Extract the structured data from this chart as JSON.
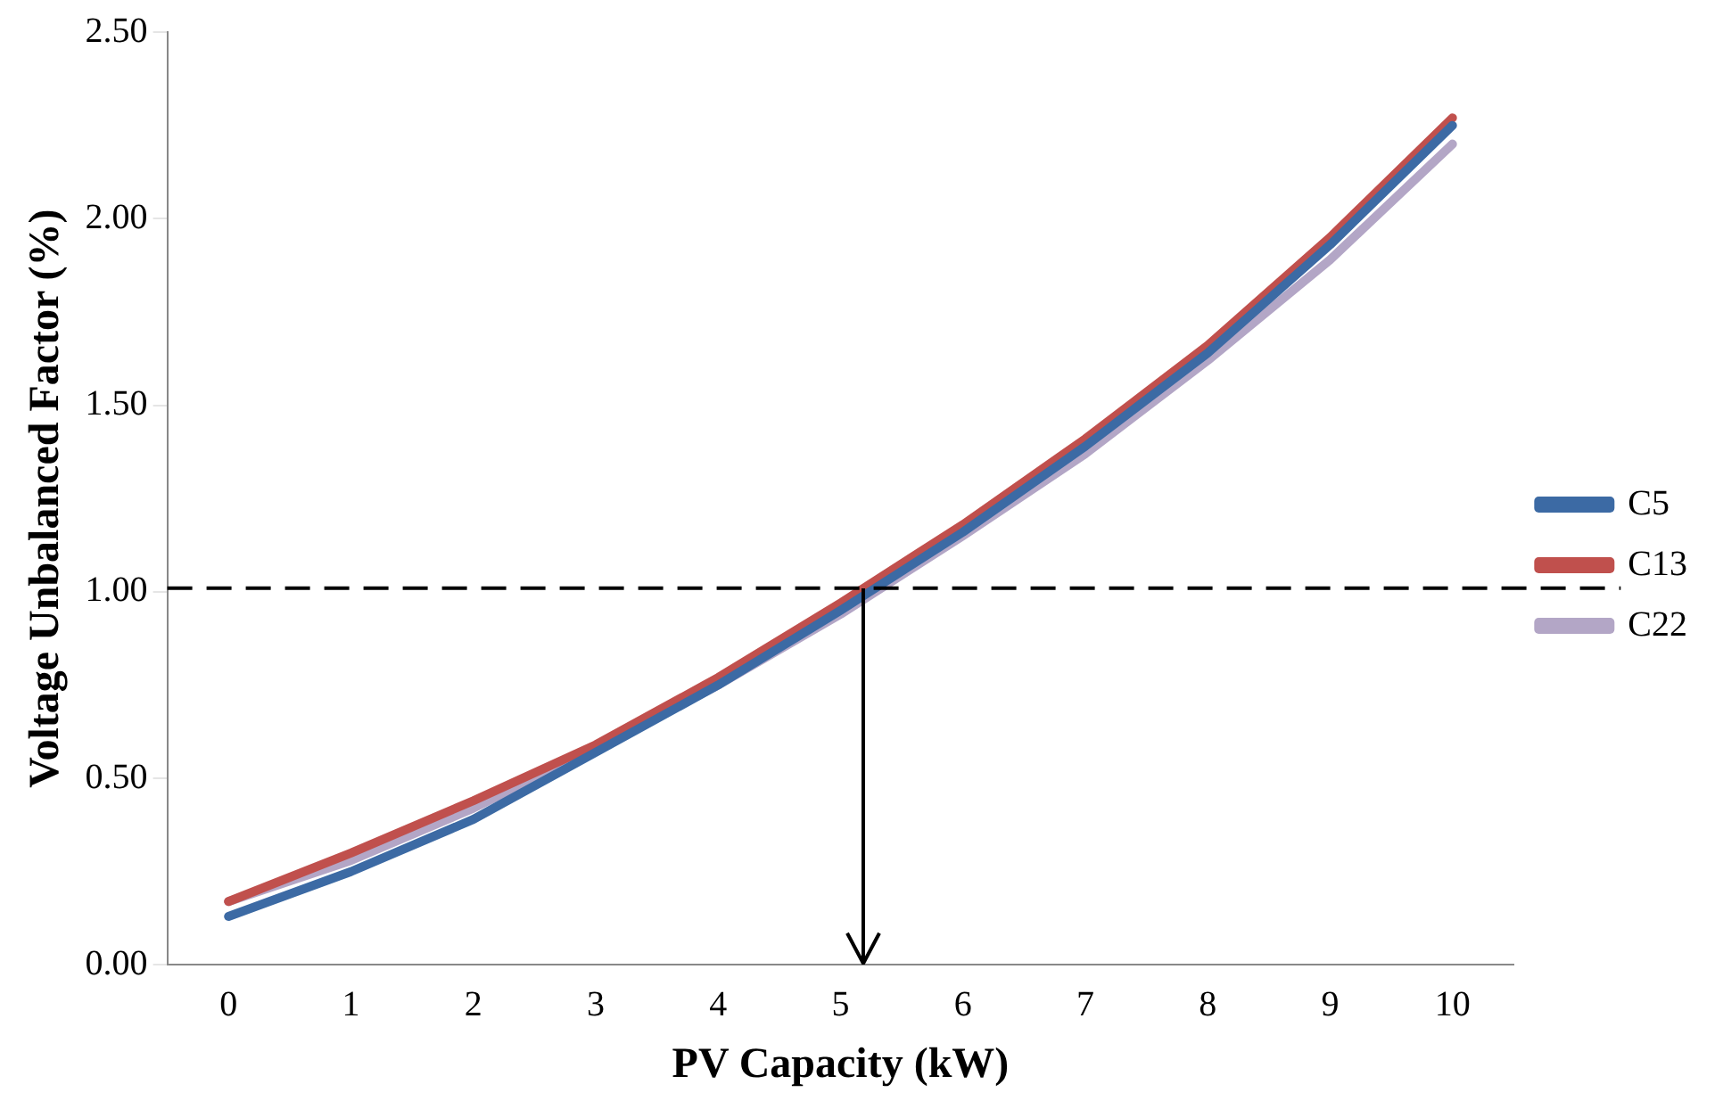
{
  "chart_data": {
    "type": "line",
    "xlabel": "PV Capacity (kW)",
    "ylabel": "Voltage Unbalanced Factor (%)",
    "categories": [
      "0",
      "1",
      "2",
      "3",
      "4",
      "5",
      "6",
      "7",
      "8",
      "9",
      "10"
    ],
    "series": [
      {
        "name": "C5",
        "color": "#3c6aa4",
        "values": [
          0.13,
          0.25,
          0.39,
          0.57,
          0.75,
          0.95,
          1.16,
          1.39,
          1.64,
          1.93,
          2.25
        ]
      },
      {
        "name": "C13",
        "color": "#c0504d",
        "values": [
          0.17,
          0.3,
          0.44,
          0.59,
          0.77,
          0.97,
          1.18,
          1.41,
          1.66,
          1.95,
          2.27
        ]
      },
      {
        "name": "C22",
        "color": "#b3a6c6",
        "values": [
          0.17,
          0.28,
          0.42,
          0.58,
          0.75,
          0.94,
          1.15,
          1.37,
          1.62,
          1.89,
          2.2
        ]
      }
    ],
    "ylim": [
      0,
      2.5
    ],
    "yticks": [
      {
        "value": 0,
        "label": "0.00"
      },
      {
        "value": 0.5,
        "label": "0.50"
      },
      {
        "value": 1,
        "label": "1.00"
      },
      {
        "value": 1.5,
        "label": "1.50"
      },
      {
        "value": 2,
        "label": "2.00"
      },
      {
        "value": 2.5,
        "label": "2.50"
      }
    ],
    "ref_lines": [
      {
        "axis": "y",
        "value": 1.01,
        "color": "#000000",
        "line_style": "dashed"
      }
    ],
    "grid": false,
    "legend": "right",
    "marker": "none",
    "line_style": "solid"
  }
}
